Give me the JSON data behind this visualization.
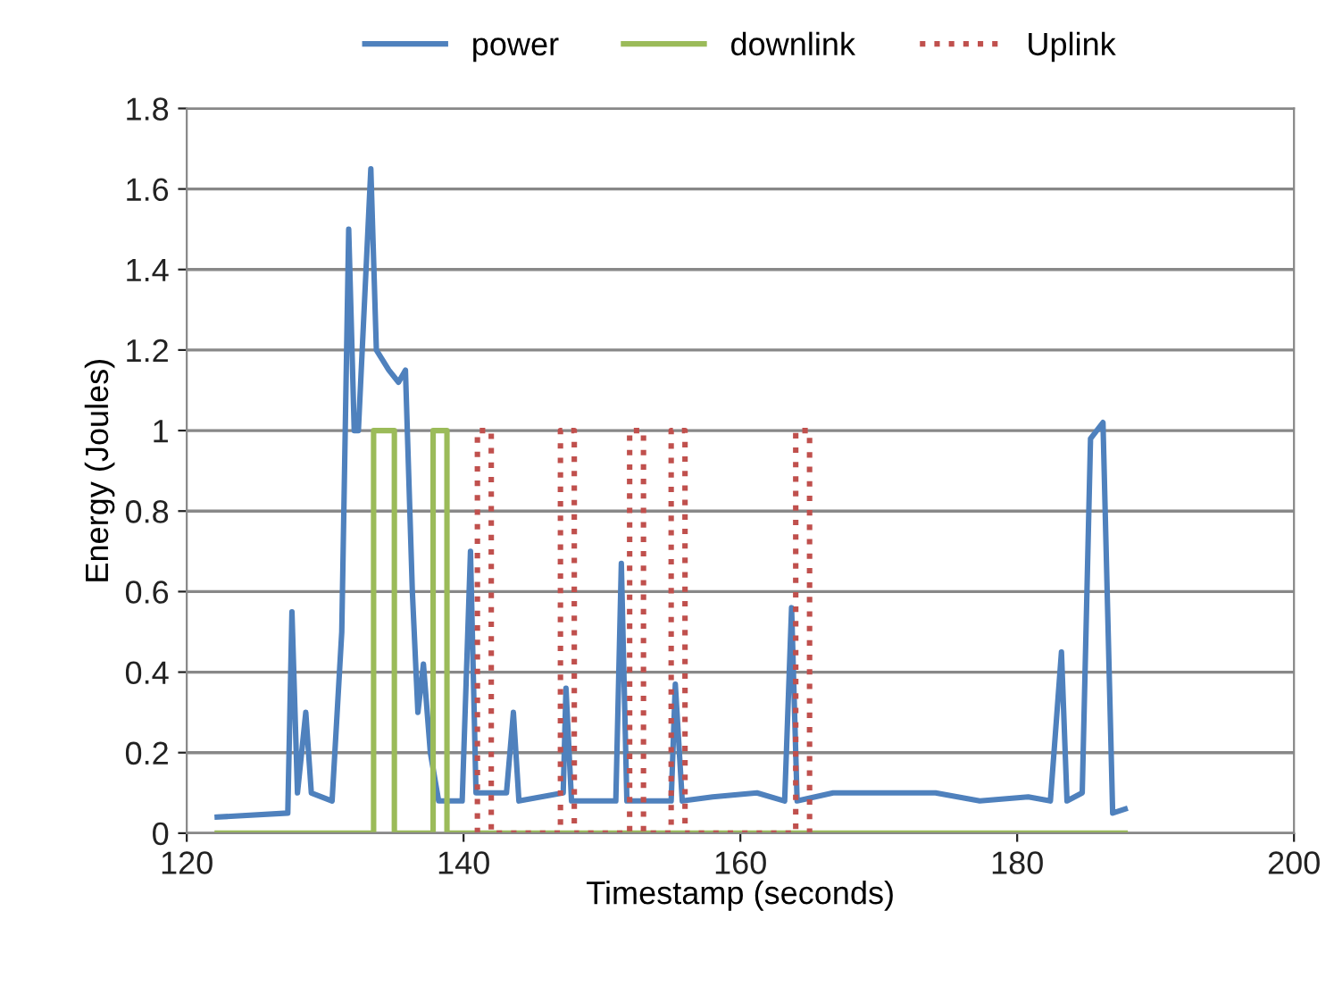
{
  "chart_data": {
    "type": "line",
    "xlabel": "Timestamp (seconds)",
    "ylabel": "Energy (Joules)",
    "xlim": [
      120,
      200
    ],
    "xticks": [
      120,
      140,
      160,
      180,
      200
    ],
    "ylim": [
      0,
      1.8
    ],
    "yticks": [
      0,
      0.2,
      0.4,
      0.6,
      0.8,
      1,
      1.2,
      1.4,
      1.6,
      1.8
    ],
    "grid": "y",
    "legend": "top",
    "series": [
      {
        "name": "power",
        "color": "#4f81bd",
        "line_style": "solid",
        "x": [
          122.2,
          127.3,
          127.6,
          128.0,
          128.6,
          129.0,
          130.5,
          131.2,
          131.7,
          132.1,
          132.4,
          133.3,
          133.7,
          134.6,
          135.3,
          135.8,
          136.3,
          136.7,
          137.1,
          137.6,
          138.2,
          139.9,
          140.5,
          140.9,
          143.1,
          143.6,
          144.0,
          147.2,
          147.4,
          147.8,
          151.0,
          151.4,
          151.8,
          155.0,
          155.3,
          155.8,
          158.0,
          161.2,
          163.2,
          163.7,
          164.1,
          166.7,
          170.5,
          174.1,
          177.3,
          180.8,
          182.4,
          183.2,
          183.6,
          184.7,
          185.3,
          186.2,
          186.9,
          187.8
        ],
        "values": [
          0.04,
          0.05,
          0.55,
          0.1,
          0.3,
          0.1,
          0.08,
          0.5,
          1.5,
          1.0,
          1.0,
          1.65,
          1.2,
          1.15,
          1.12,
          1.15,
          0.6,
          0.3,
          0.42,
          0.2,
          0.08,
          0.08,
          0.7,
          0.1,
          0.1,
          0.3,
          0.08,
          0.1,
          0.36,
          0.08,
          0.08,
          0.67,
          0.08,
          0.08,
          0.37,
          0.08,
          0.09,
          0.1,
          0.08,
          0.56,
          0.08,
          0.1,
          0.1,
          0.1,
          0.08,
          0.09,
          0.08,
          0.45,
          0.08,
          0.1,
          0.98,
          1.02,
          0.05,
          0.06
        ]
      },
      {
        "name": "downlink",
        "color": "#9bbb59",
        "line_style": "solid",
        "x": [
          122.2,
          133.5,
          133.5,
          135.0,
          135.0,
          137.8,
          137.8,
          138.8,
          138.8,
          187.8
        ],
        "values": [
          0,
          0,
          1,
          1,
          0,
          0,
          1,
          1,
          0,
          0
        ]
      },
      {
        "name": "Uplink",
        "color": "#c0504d",
        "line_style": "dotted",
        "x": [
          141.0,
          141.0,
          142.0,
          142.0,
          147.0,
          147.0,
          148.0,
          148.0,
          152.0,
          152.0,
          153.0,
          153.0,
          155.0,
          155.0,
          156.0,
          156.0,
          164.0,
          164.0,
          165.0,
          165.0
        ],
        "values": [
          0,
          1,
          1,
          0,
          0,
          1,
          1,
          0,
          0,
          1,
          1,
          0,
          0,
          1,
          1,
          0,
          0,
          1,
          1,
          0
        ]
      }
    ]
  }
}
